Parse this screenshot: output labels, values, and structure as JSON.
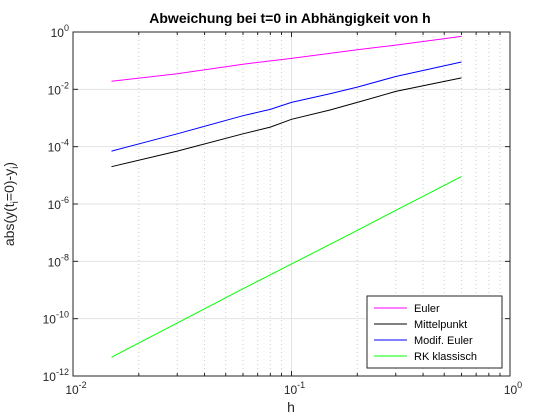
{
  "chart_data": {
    "type": "line",
    "title": "Abweichung bei t=0 in Abhängigkeit von h",
    "xlabel": "h",
    "ylabel": {
      "pre": "abs(y(t",
      "sub1": "i",
      "mid": "=0)-y",
      "sub2": "i",
      "post": ")"
    },
    "xscale": "log",
    "yscale": "log",
    "xlim": [
      0.01,
      1
    ],
    "ylim": [
      1e-12,
      1
    ],
    "grid": true,
    "legend_position": "bottom-right",
    "x_ticks": [
      {
        "value": 0.01,
        "base": "10",
        "exp": "-2"
      },
      {
        "value": 0.1,
        "base": "10",
        "exp": "-1"
      },
      {
        "value": 1,
        "base": "10",
        "exp": "0"
      }
    ],
    "y_ticks": [
      {
        "value": 1e-12,
        "base": "10",
        "exp": "-12"
      },
      {
        "value": 1e-10,
        "base": "10",
        "exp": "-10"
      },
      {
        "value": 1e-08,
        "base": "10",
        "exp": "-8"
      },
      {
        "value": 1e-06,
        "base": "10",
        "exp": "-6"
      },
      {
        "value": 0.0001,
        "base": "10",
        "exp": "-4"
      },
      {
        "value": 0.01,
        "base": "10",
        "exp": "-2"
      },
      {
        "value": 1,
        "base": "10",
        "exp": "0"
      }
    ],
    "series": [
      {
        "name": "Euler",
        "color": "#ff00ff",
        "x": [
          0.015,
          0.03,
          0.06,
          0.1,
          0.2,
          0.3,
          0.6
        ],
        "y": [
          0.019,
          0.035,
          0.075,
          0.12,
          0.24,
          0.35,
          0.7
        ]
      },
      {
        "name": "Mittelpunkt",
        "color": "#000000",
        "x": [
          0.015,
          0.03,
          0.06,
          0.08,
          0.1,
          0.15,
          0.2,
          0.3,
          0.6
        ],
        "y": [
          2e-05,
          7e-05,
          0.00028,
          0.00048,
          0.0009,
          0.0019,
          0.0035,
          0.0085,
          0.025
        ]
      },
      {
        "name": "Modif. Euler",
        "color": "#0000ff",
        "x": [
          0.015,
          0.03,
          0.06,
          0.08,
          0.1,
          0.15,
          0.2,
          0.3,
          0.6
        ],
        "y": [
          7e-05,
          0.00028,
          0.0012,
          0.002,
          0.0035,
          0.007,
          0.012,
          0.028,
          0.09
        ]
      },
      {
        "name": "RK klassisch",
        "color": "#00ff00",
        "x": [
          0.015,
          0.03,
          0.06,
          0.1,
          0.2,
          0.3,
          0.6
        ],
        "y": [
          4.5e-12,
          7e-11,
          1.1e-09,
          8e-09,
          1.2e-07,
          6e-07,
          9e-06
        ]
      }
    ]
  }
}
